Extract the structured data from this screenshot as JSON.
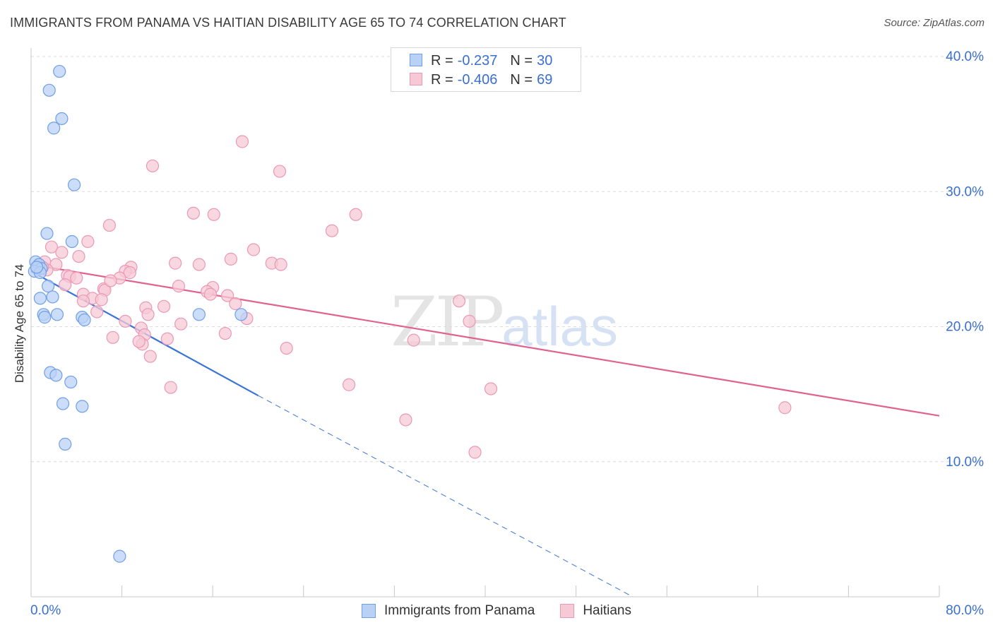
{
  "title": "IMMIGRANTS FROM PANAMA VS HAITIAN DISABILITY AGE 65 TO 74 CORRELATION CHART",
  "source": "Source: ZipAtlas.com",
  "watermark": {
    "zip": "ZIP",
    "atlas": "atlas"
  },
  "legend": [
    {
      "r_label": "R =",
      "r_value": "-0.237",
      "n_label": "N =",
      "n_value": "30"
    },
    {
      "r_label": "R =",
      "r_value": "-0.406",
      "n_label": "N =",
      "n_value": "69"
    }
  ],
  "colors": {
    "blue_fill": "#b9d1f5",
    "blue_stroke": "#6f9fe6",
    "blue_line": "#3a74d6",
    "pink_fill": "#f7c9d7",
    "pink_stroke": "#ea98b4",
    "pink_line": "#e0628d",
    "grid": "#dcdcdc",
    "tick_text": "#3a6fd0"
  },
  "chart_data": {
    "type": "scatter",
    "title": "IMMIGRANTS FROM PANAMA VS HAITIAN DISABILITY AGE 65 TO 74 CORRELATION CHART",
    "xlabel": "",
    "ylabel": "Disability Age 65 to 74",
    "xlim": [
      0,
      80
    ],
    "ylim": [
      0,
      40
    ],
    "x_tick_labels": [
      "0.0%",
      "80.0%"
    ],
    "y_ticks": [
      10,
      20,
      30,
      40
    ],
    "y_tick_labels": [
      "10.0%",
      "20.0%",
      "30.0%",
      "40.0%"
    ],
    "series": [
      {
        "name": "Immigrants from Panama",
        "color": "blue",
        "points": [
          [
            2.5,
            38.9
          ],
          [
            1.6,
            37.5
          ],
          [
            2.7,
            35.4
          ],
          [
            2.0,
            34.7
          ],
          [
            3.8,
            30.5
          ],
          [
            1.4,
            26.9
          ],
          [
            3.6,
            26.3
          ],
          [
            0.4,
            24.8
          ],
          [
            0.7,
            24.6
          ],
          [
            0.9,
            24.3
          ],
          [
            0.3,
            24.1
          ],
          [
            0.8,
            24.0
          ],
          [
            1.5,
            23.0
          ],
          [
            0.8,
            22.1
          ],
          [
            1.9,
            22.2
          ],
          [
            1.1,
            20.9
          ],
          [
            2.3,
            20.9
          ],
          [
            4.5,
            20.7
          ],
          [
            1.2,
            20.7
          ],
          [
            4.7,
            20.5
          ],
          [
            14.8,
            20.9
          ],
          [
            18.5,
            20.9
          ],
          [
            1.7,
            16.6
          ],
          [
            2.2,
            16.4
          ],
          [
            3.5,
            15.9
          ],
          [
            2.8,
            14.3
          ],
          [
            4.5,
            14.1
          ],
          [
            3.0,
            11.3
          ],
          [
            7.8,
            3.0
          ],
          [
            0.5,
            24.4
          ]
        ],
        "trend": {
          "x0": 0,
          "y0": 24.1,
          "x1_solid": 20,
          "y1_solid": 14.9,
          "x1_dashed": 53,
          "y1_dashed": 0
        }
      },
      {
        "name": "Haitians",
        "color": "pink",
        "points": [
          [
            18.6,
            33.7
          ],
          [
            10.7,
            31.9
          ],
          [
            21.9,
            31.5
          ],
          [
            14.3,
            28.4
          ],
          [
            16.1,
            28.3
          ],
          [
            28.6,
            28.3
          ],
          [
            6.9,
            27.5
          ],
          [
            26.5,
            27.1
          ],
          [
            5.0,
            26.3
          ],
          [
            1.8,
            25.9
          ],
          [
            19.6,
            25.7
          ],
          [
            2.7,
            25.5
          ],
          [
            4.2,
            25.2
          ],
          [
            17.6,
            25.0
          ],
          [
            1.2,
            24.8
          ],
          [
            2.2,
            24.6
          ],
          [
            12.7,
            24.7
          ],
          [
            14.8,
            24.6
          ],
          [
            21.2,
            24.7
          ],
          [
            22.0,
            24.6
          ],
          [
            8.8,
            24.4
          ],
          [
            0.6,
            24.5
          ],
          [
            1.4,
            24.2
          ],
          [
            8.3,
            24.1
          ],
          [
            8.7,
            24.0
          ],
          [
            3.2,
            23.8
          ],
          [
            3.4,
            23.7
          ],
          [
            7.8,
            23.6
          ],
          [
            6.4,
            22.8
          ],
          [
            6.5,
            22.7
          ],
          [
            4.6,
            22.4
          ],
          [
            3.0,
            23.1
          ],
          [
            13.0,
            23.0
          ],
          [
            16.0,
            22.9
          ],
          [
            15.5,
            22.6
          ],
          [
            15.8,
            22.4
          ],
          [
            17.3,
            22.3
          ],
          [
            5.4,
            22.1
          ],
          [
            4.6,
            21.9
          ],
          [
            11.7,
            21.5
          ],
          [
            18.0,
            21.7
          ],
          [
            10.1,
            21.4
          ],
          [
            5.8,
            21.1
          ],
          [
            10.3,
            20.9
          ],
          [
            8.3,
            20.4
          ],
          [
            13.2,
            20.2
          ],
          [
            19.0,
            20.6
          ],
          [
            37.7,
            21.9
          ],
          [
            38.6,
            20.4
          ],
          [
            7.2,
            19.2
          ],
          [
            9.7,
            19.9
          ],
          [
            10.0,
            19.4
          ],
          [
            17.1,
            19.5
          ],
          [
            12.0,
            19.1
          ],
          [
            9.8,
            18.7
          ],
          [
            22.5,
            18.4
          ],
          [
            10.5,
            17.8
          ],
          [
            33.7,
            19.0
          ],
          [
            12.3,
            15.5
          ],
          [
            28.0,
            15.7
          ],
          [
            40.5,
            15.4
          ],
          [
            66.4,
            14.0
          ],
          [
            33.0,
            13.1
          ],
          [
            39.1,
            10.7
          ],
          [
            9.5,
            18.9
          ],
          [
            6.2,
            22.0
          ],
          [
            1.0,
            24.4
          ],
          [
            7.0,
            23.4
          ],
          [
            4.0,
            23.6
          ]
        ],
        "trend": {
          "x0": 0,
          "y0": 24.6,
          "x1": 80,
          "y1": 13.4
        }
      }
    ]
  },
  "bottom_legend": [
    "Immigrants from Panama",
    "Haitians"
  ]
}
